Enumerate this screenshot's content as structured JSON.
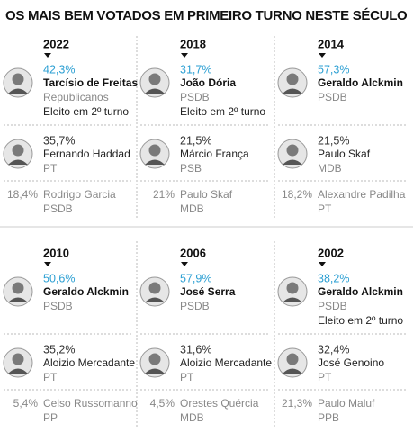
{
  "title": "OS MAIS BEM VOTADOS EM PRIMEIRO TURNO NESTE SÉCULO",
  "elections": [
    {
      "year": "2022",
      "candidates": [
        {
          "pct": "42,3%",
          "name": "Tarcísio de Freitas",
          "party": "Republicanos",
          "note": "Eleito em 2º turno"
        },
        {
          "pct": "35,7%",
          "name": "Fernando Haddad",
          "party": "PT"
        },
        {
          "pct": "18,4%",
          "name": "Rodrigo Garcia",
          "party": "PSDB"
        }
      ]
    },
    {
      "year": "2018",
      "candidates": [
        {
          "pct": "31,7%",
          "name": "João Dória",
          "party": "PSDB",
          "note": "Eleito em 2º turno"
        },
        {
          "pct": "21,5%",
          "name": "Márcio França",
          "party": "PSB"
        },
        {
          "pct": "21%",
          "name": "Paulo Skaf",
          "party": "MDB"
        }
      ]
    },
    {
      "year": "2014",
      "candidates": [
        {
          "pct": "57,3%",
          "name": "Geraldo Alckmin",
          "party": "PSDB"
        },
        {
          "pct": "21,5%",
          "name": "Paulo Skaf",
          "party": "MDB"
        },
        {
          "pct": "18,2%",
          "name": "Alexandre Padilha",
          "party": "PT"
        }
      ]
    },
    {
      "year": "2010",
      "candidates": [
        {
          "pct": "50,6%",
          "name": "Geraldo Alckmin",
          "party": "PSDB"
        },
        {
          "pct": "35,2%",
          "name": "Aloizio Mercadante",
          "party": "PT"
        },
        {
          "pct": "5,4%",
          "name": "Celso Russomanno",
          "party": "PP"
        }
      ]
    },
    {
      "year": "2006",
      "candidates": [
        {
          "pct": "57,9%",
          "name": "José Serra",
          "party": "PSDB"
        },
        {
          "pct": "31,6%",
          "name": "Aloizio Mercadante",
          "party": "PT"
        },
        {
          "pct": "4,5%",
          "name": "Orestes Quércia",
          "party": "MDB"
        }
      ]
    },
    {
      "year": "2002",
      "candidates": [
        {
          "pct": "38,2%",
          "name": "Geraldo Alckmin",
          "party": "PSDB",
          "note": "Eleito em 2º turno"
        },
        {
          "pct": "32,4%",
          "name": "José Genoino",
          "party": "PT"
        },
        {
          "pct": "21,3%",
          "name": "Paulo Maluf",
          "party": "PPB"
        }
      ]
    }
  ]
}
